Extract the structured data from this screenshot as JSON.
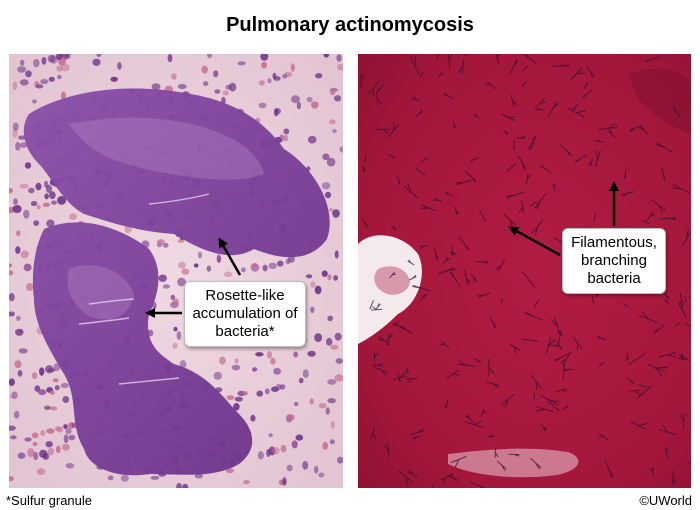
{
  "title": "Pulmonary actinomycosis",
  "panels": {
    "left": {
      "callout": "Rosette-like accumulation of bacteria*"
    },
    "right": {
      "callout": "Filamentous, branching bacteria"
    }
  },
  "footnote": "*Sulfur granule",
  "copyright": "©UWorld",
  "colors": {
    "left_background": "#e9d2dc",
    "granule": "#7a3f9a",
    "cells": "#6b2f86",
    "right_background": "#a8173a",
    "filaments": "#3a0d30"
  }
}
